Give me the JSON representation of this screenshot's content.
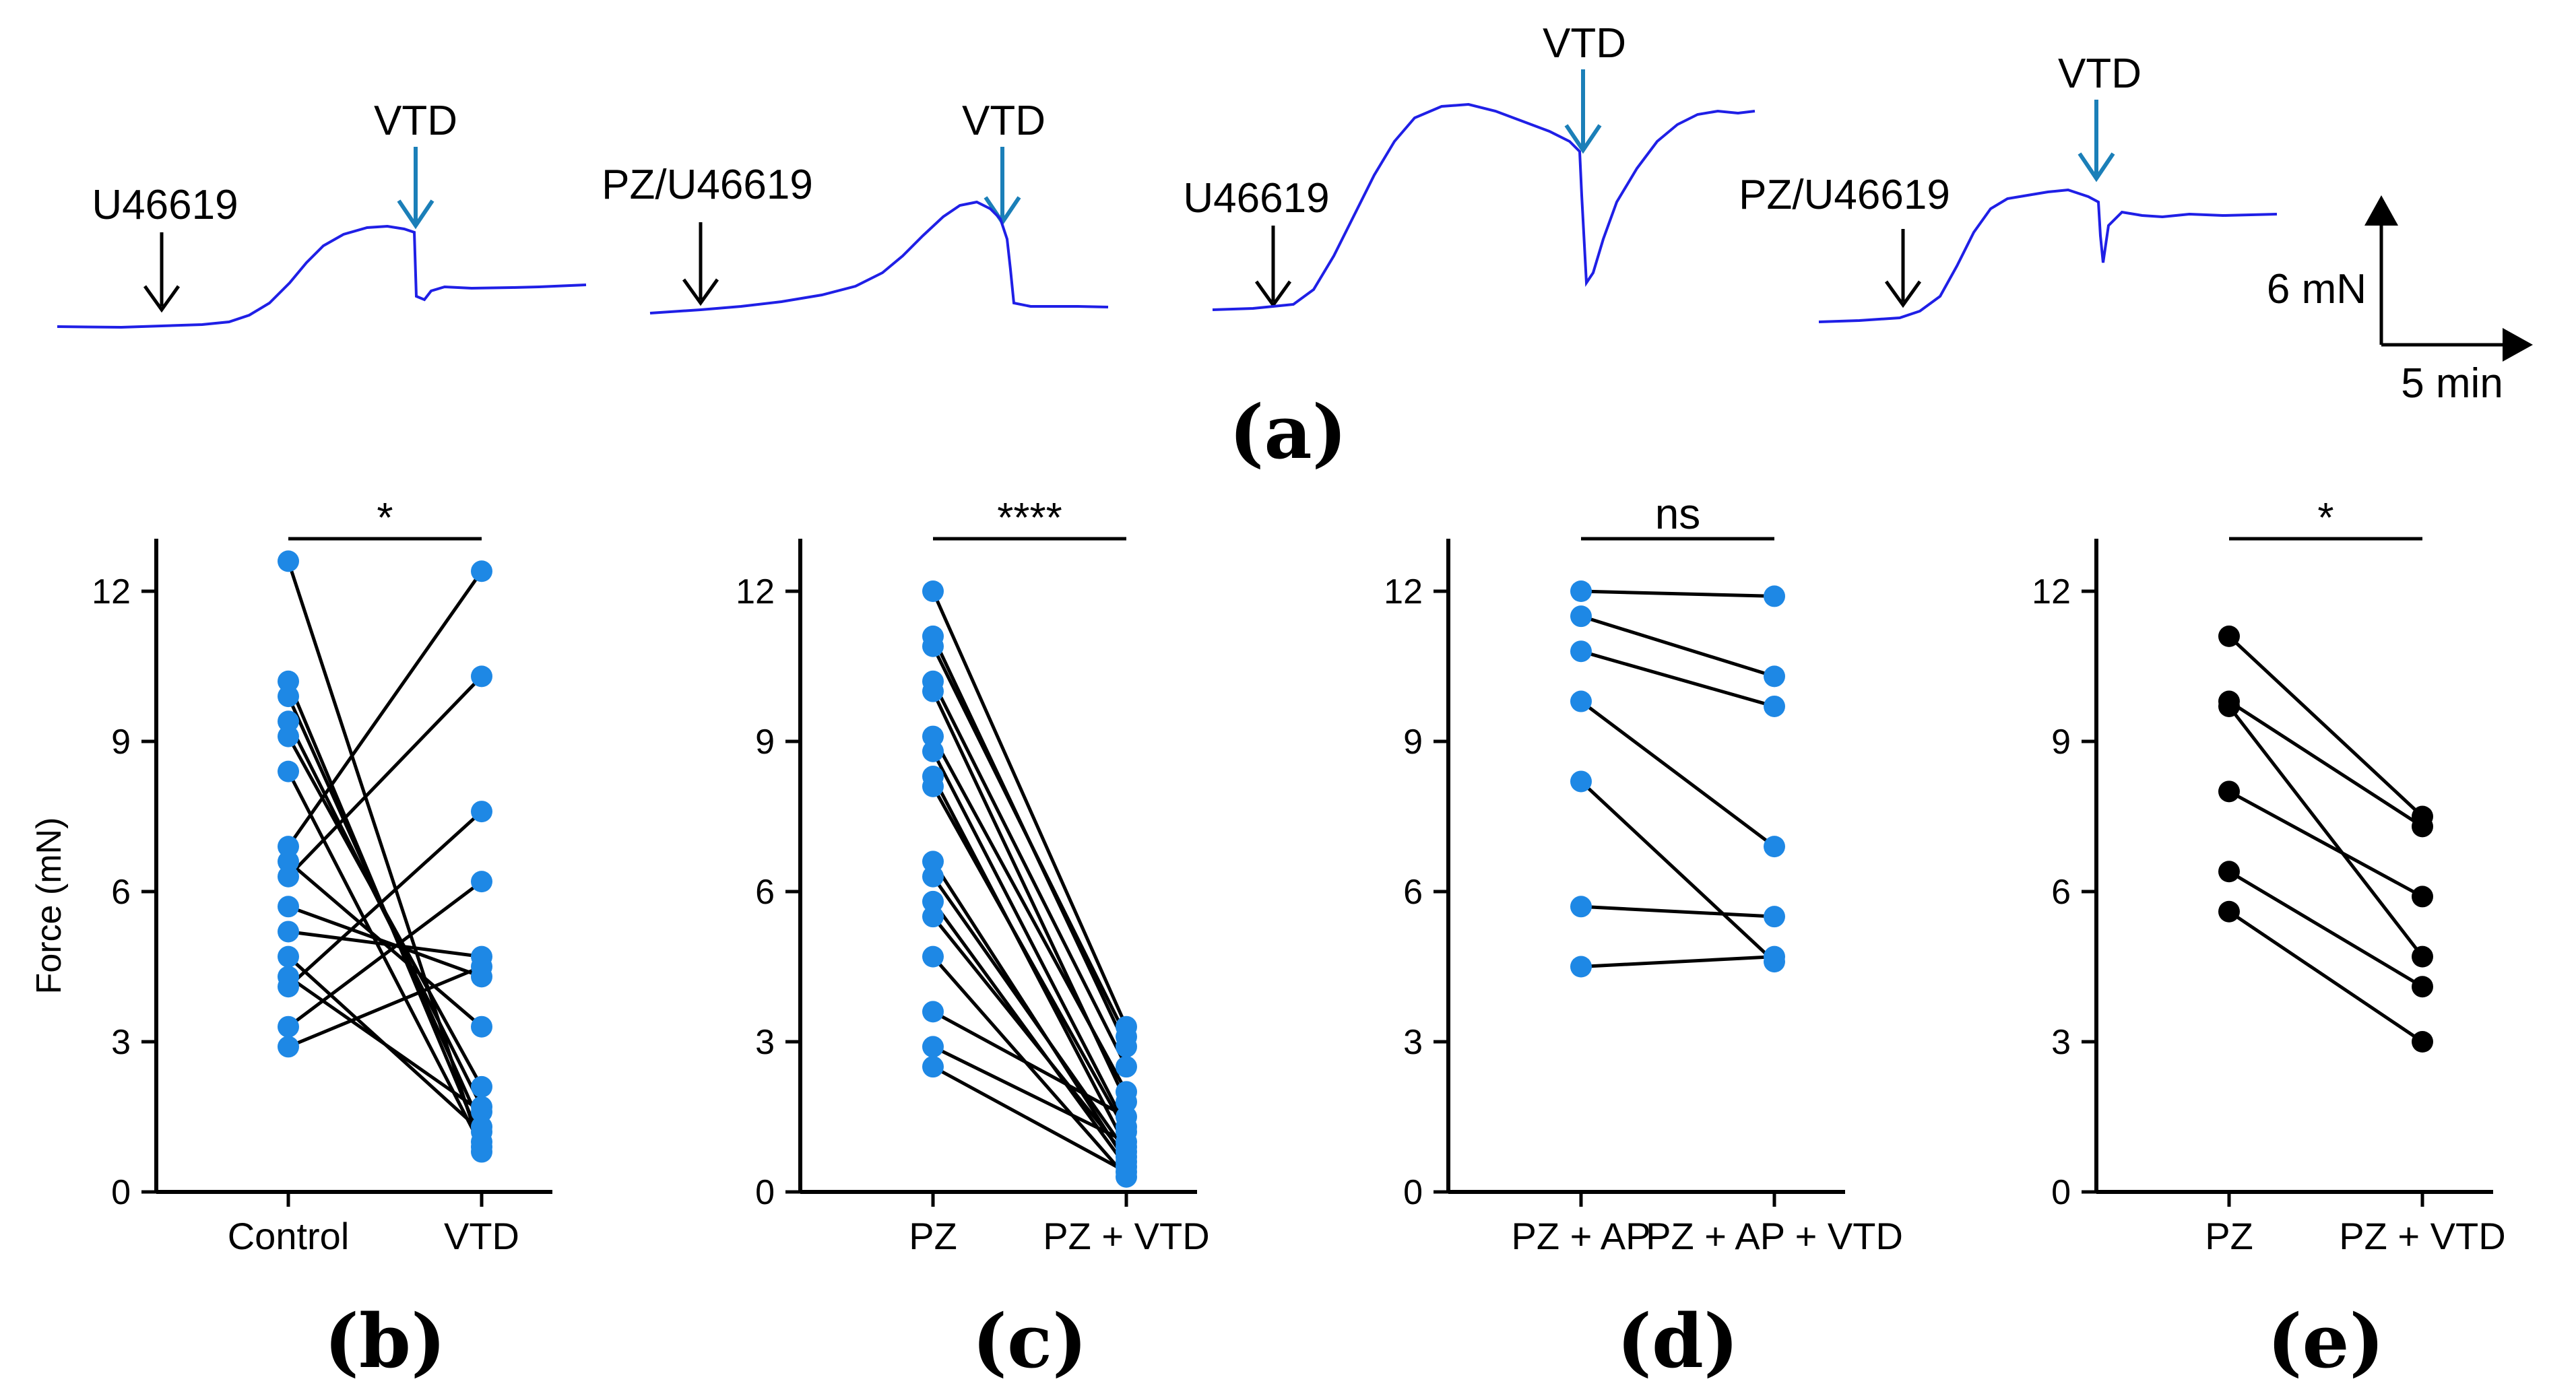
{
  "colors": {
    "trace": "#1f1fe6",
    "vtd_arrow": "#1b7fb8",
    "agonist_arrow": "#000000",
    "dot_blue": "#1e88e5",
    "dot_black": "#000000",
    "line": "#000000"
  },
  "panel_a": {
    "label": "(a)",
    "traces": [
      {
        "agonist_label": "U46619",
        "vtd_label": "VTD"
      },
      {
        "agonist_label": "PZ/U46619",
        "vtd_label": "VTD"
      },
      {
        "agonist_label": "U46619",
        "vtd_label": "VTD"
      },
      {
        "agonist_label": "PZ/U46619",
        "vtd_label": "VTD"
      }
    ],
    "scale_bar": {
      "force_label": "6 mN",
      "time_label": "5 min"
    }
  },
  "chart_data": [
    {
      "panel": "b",
      "label": "(b)",
      "type": "scatter",
      "ylabel": "Force (mN)",
      "ylim": [
        0,
        13
      ],
      "yticks": [
        "0",
        "3",
        "6",
        "9",
        "12"
      ],
      "categories": [
        "Control",
        "VTD"
      ],
      "significance": "*",
      "dot_color": "#1e88e5",
      "pairs": [
        [
          12.6,
          0.8
        ],
        [
          10.2,
          1.0
        ],
        [
          9.9,
          1.3
        ],
        [
          9.4,
          1.7
        ],
        [
          9.1,
          2.1
        ],
        [
          8.4,
          0.9
        ],
        [
          6.9,
          12.4
        ],
        [
          6.6,
          3.3
        ],
        [
          6.3,
          10.3
        ],
        [
          5.7,
          4.3
        ],
        [
          5.2,
          4.7
        ],
        [
          4.7,
          1.2
        ],
        [
          4.3,
          1.6
        ],
        [
          4.1,
          7.6
        ],
        [
          3.3,
          6.2
        ],
        [
          2.9,
          4.5
        ]
      ]
    },
    {
      "panel": "c",
      "label": "(c)",
      "type": "scatter",
      "ylabel": "",
      "ylim": [
        0,
        13
      ],
      "yticks": [
        "0",
        "3",
        "6",
        "9",
        "12"
      ],
      "categories": [
        "PZ",
        "PZ + VTD"
      ],
      "significance": "****",
      "dot_color": "#1e88e5",
      "pairs": [
        [
          12.0,
          3.3
        ],
        [
          11.1,
          2.9
        ],
        [
          10.9,
          3.1
        ],
        [
          10.2,
          2.5
        ],
        [
          10.0,
          1.8
        ],
        [
          9.1,
          2.0
        ],
        [
          8.8,
          1.3
        ],
        [
          8.3,
          0.9
        ],
        [
          8.1,
          1.2
        ],
        [
          6.6,
          0.6
        ],
        [
          6.3,
          0.8
        ],
        [
          5.8,
          0.5
        ],
        [
          5.5,
          0.7
        ],
        [
          4.7,
          0.3
        ],
        [
          3.6,
          1.5
        ],
        [
          2.9,
          1.0
        ],
        [
          2.5,
          0.4
        ]
      ]
    },
    {
      "panel": "d",
      "label": "(d)",
      "type": "scatter",
      "ylabel": "",
      "ylim": [
        0,
        13
      ],
      "yticks": [
        "0",
        "3",
        "6",
        "9",
        "12"
      ],
      "categories": [
        "PZ + AP",
        "PZ + AP + VTD"
      ],
      "significance": "ns",
      "dot_color": "#1e88e5",
      "pairs": [
        [
          12.0,
          11.9
        ],
        [
          11.5,
          10.3
        ],
        [
          10.8,
          9.7
        ],
        [
          9.8,
          6.9
        ],
        [
          8.2,
          4.6
        ],
        [
          5.7,
          5.5
        ],
        [
          4.5,
          4.7
        ]
      ]
    },
    {
      "panel": "e",
      "label": "(e)",
      "type": "scatter",
      "ylabel": "",
      "ylim": [
        0,
        13
      ],
      "yticks": [
        "0",
        "3",
        "6",
        "9",
        "12"
      ],
      "categories": [
        "PZ",
        "PZ + VTD"
      ],
      "significance": "*",
      "dot_color": "#000000",
      "pairs": [
        [
          11.1,
          7.5
        ],
        [
          9.8,
          7.3
        ],
        [
          9.7,
          4.7
        ],
        [
          8.0,
          5.9
        ],
        [
          6.4,
          4.1
        ],
        [
          5.6,
          3.0
        ]
      ]
    }
  ]
}
